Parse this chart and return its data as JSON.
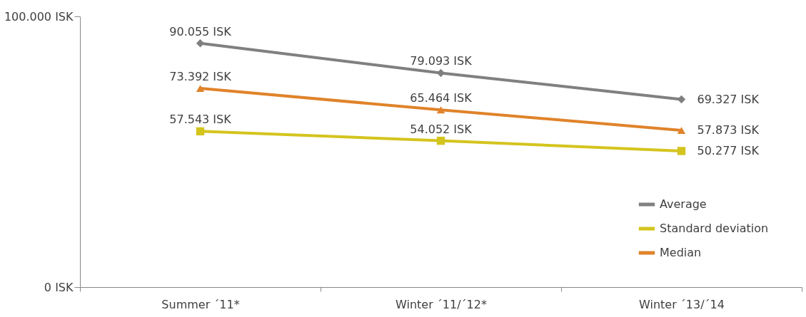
{
  "chart_data": {
    "type": "line",
    "categories": [
      "Summer ´11*",
      "Winter ´11/´12*",
      "Winter ´13/´14"
    ],
    "series": [
      {
        "name": "Average",
        "color": "#808080",
        "marker": "diamond",
        "values": [
          90055,
          79093,
          69327
        ],
        "value_labels": [
          "90.055 ISK",
          "79.093 ISK",
          "69.327 ISK"
        ]
      },
      {
        "name": "Standard deviation",
        "color": "#d4c41e",
        "marker": "square",
        "values": [
          57543,
          54052,
          50277
        ],
        "value_labels": [
          "57.543 ISK",
          "54.052 ISK",
          "50.277 ISK"
        ]
      },
      {
        "name": "Median",
        "color": "#e0832a",
        "marker": "triangle",
        "values": [
          73392,
          65464,
          57873
        ],
        "value_labels": [
          "73.392 ISK",
          "65.464 ISK",
          "57.873 ISK"
        ]
      }
    ],
    "ylim": [
      0,
      100000
    ],
    "yticks": [
      {
        "value": 0,
        "label": "0 ISK"
      },
      {
        "value": 100000,
        "label": "100.000 ISK"
      }
    ],
    "grid": false,
    "legend": "right"
  }
}
